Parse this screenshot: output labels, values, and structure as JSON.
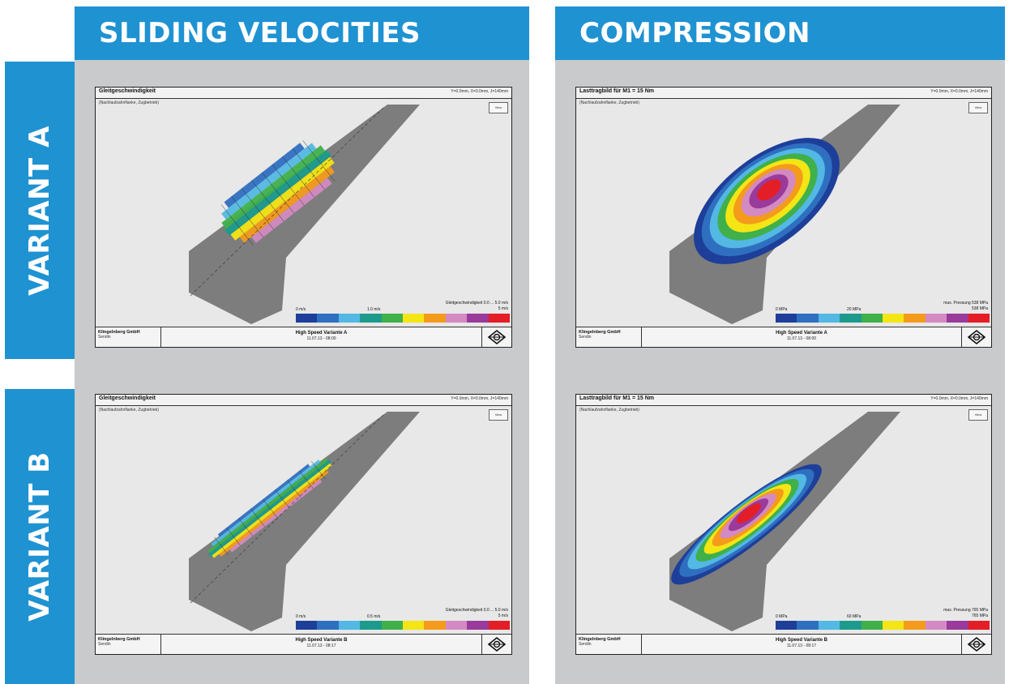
{
  "columns": {
    "sliding": "SLIDING VELOCITIES",
    "compression": "COMPRESSION"
  },
  "rows": {
    "a": "VARIANT A",
    "b": "VARIANT B"
  },
  "colors": {
    "header_blue": "#1f92d2",
    "panel_grey": "#c8cacc",
    "flank_grey": "#7d7d7d",
    "scale": [
      "#1d3f9a",
      "#2f6fc0",
      "#53b8e3",
      "#1c9b8c",
      "#3fb04a",
      "#f4e514",
      "#f49b1c",
      "#d38ac2",
      "#9a3a9a",
      "#e41e26"
    ]
  },
  "plots": {
    "a_sliding": {
      "title": "Gleitgeschwindigkeit",
      "params": "Y=0.0mm, X=0.0mm, J=140mm",
      "sub": "(Nachlaufzahnflanke, Zugbetrieb)",
      "view": "View",
      "legend_line1": "Gleitgeschwindigkeit 0.0 ... 5.0 m/s",
      "max_label": "5 m/s",
      "min_label": "0 m/s",
      "scale_ref": "1.0 m/s",
      "company": "Klingelnberg GmbH",
      "city": "Sendin",
      "project": "High Speed Variante A",
      "date": "11.07.13 - 08:00"
    },
    "a_compression": {
      "title": "Lasttragbild für M1 = 15 Nm",
      "params": "Y=0.0mm, X=0.0mm, J=140mm",
      "sub": "(Nachlaufzahnflanke, Zugbetrieb)",
      "view": "View",
      "legend_line1": "max. Pressung 538 MPa",
      "max_label": "538 MPa",
      "min_label": "0 MPa",
      "scale_ref": "20 MPa",
      "company": "Klingelnberg GmbH",
      "city": "Sendin",
      "project": "High Speed Variante A",
      "date": "11.07.13 - 08:00"
    },
    "b_sliding": {
      "title": "Gleitgeschwindigkeit",
      "params": "Y=0.0mm, X=0.0mm, J=140mm",
      "sub": "(Nachlaufzahnflanke, Zugbetrieb)",
      "view": "View",
      "legend_line1": "Gleitgeschwindigkeit 0.0 ... 5.0 m/s",
      "max_label": "5 m/s",
      "min_label": "0 m/s",
      "scale_ref": "0.5 m/s",
      "company": "Klingelnberg GmbH",
      "city": "Sendin",
      "project": "High Speed Variante B",
      "date": "11.07.13 - 08:17"
    },
    "b_compression": {
      "title": "Lasttragbild für M1 = 15 Nm",
      "params": "Y=0.0mm, X=0.0mm, J=140mm",
      "sub": "(Nachlaufzahnflanke, Zugbetrieb)",
      "view": "View",
      "legend_line1": "max. Pressung 765 MPa",
      "max_label": "765 MPa",
      "min_label": "0 MPa",
      "scale_ref": "60 MPa",
      "company": "Klingelnberg GmbH",
      "city": "Sendin",
      "project": "High Speed Variante B",
      "date": "11.07.13 - 08:17"
    }
  }
}
